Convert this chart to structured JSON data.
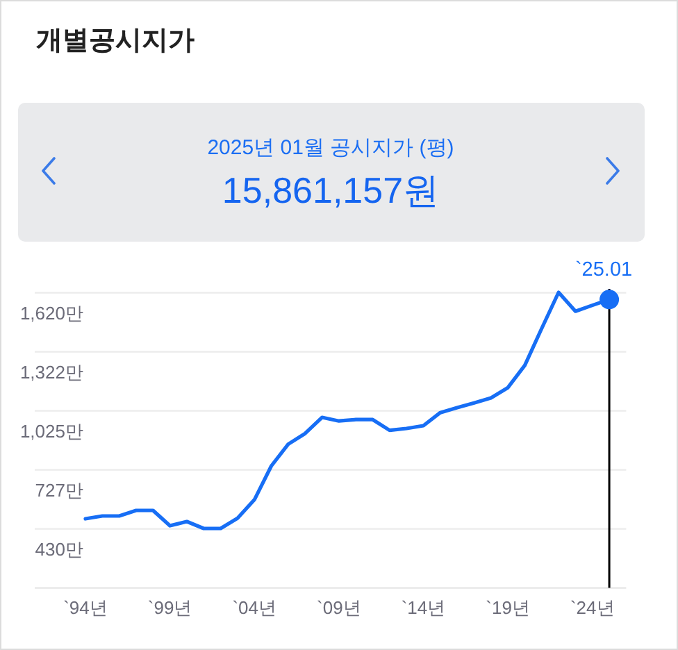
{
  "chart_data": {
    "type": "line",
    "title": "개별공시지가",
    "subtitle": "2025년 01월 공시지가 (평)",
    "annotations": [
      "15,861,157원",
      {
        "text": "`25.01",
        "x": "2025-01",
        "y": 1586
      }
    ],
    "x": [
      "1994-01",
      "1995-01",
      "1996-01",
      "1997-01",
      "1998-01",
      "1999-01",
      "2000-01",
      "2001-01",
      "2002-01",
      "2003-01",
      "2004-01",
      "2005-01",
      "2006-01",
      "2007-01",
      "2008-01",
      "2009-01",
      "2010-01",
      "2011-01",
      "2012-01",
      "2013-01",
      "2014-01",
      "2015-01",
      "2016-01",
      "2017-01",
      "2018-01",
      "2019-01",
      "2020-01",
      "2021-01",
      "2022-01",
      "2023-01",
      "2024-01",
      "2025-01"
    ],
    "series": [
      {
        "color": "#176ef5",
        "values": [
          481,
          495,
          495,
          523,
          523,
          446,
          467,
          432,
          432,
          484,
          577,
          747,
          857,
          911,
          992,
          974,
          981,
          981,
          927,
          936,
          950,
          1016,
          1041,
          1065,
          1090,
          1142,
          1254,
          1440,
          1622,
          1527,
          1557,
          1586
        ]
      },
      {
        "type": "scatter",
        "marker": "circle",
        "color": "#176ef5",
        "x": [
          "2025-01"
        ],
        "values": [
          1586
        ]
      }
    ],
    "xlim": [
      "1991-01",
      "2026-01"
    ],
    "xticks": [
      {
        "value": "1994-01",
        "label": "`94년"
      },
      {
        "value": "1999-01",
        "label": "`99년"
      },
      {
        "value": "2004-01",
        "label": "`04년"
      },
      {
        "value": "2009-01",
        "label": "`09년"
      },
      {
        "value": "2014-01",
        "label": "`14년"
      },
      {
        "value": "2019-01",
        "label": "`19년"
      },
      {
        "value": "2024-01",
        "label": "`24년"
      }
    ],
    "ylim": [
      132.5,
      1640
    ],
    "yticks": [
      {
        "value": 430,
        "label": "430만"
      },
      {
        "value": 727.5,
        "label": "727만"
      },
      {
        "value": 1025,
        "label": "1,025만"
      },
      {
        "value": 1322.5,
        "label": "1,322만"
      },
      {
        "value": 1620,
        "label": "1,620만"
      }
    ],
    "grid": "y",
    "marker": "none",
    "line_style": "solid",
    "ref_lines": [
      {
        "axis": "x",
        "value": "2025-01",
        "color": "#000000"
      }
    ]
  }
}
